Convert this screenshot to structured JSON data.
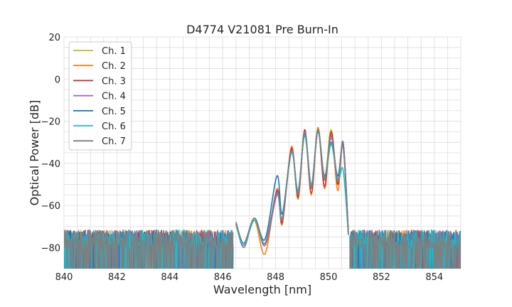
{
  "chart_data": {
    "type": "line",
    "title": "D4774 V21081 Pre Burn-In",
    "xlabel": "Wavelength [nm]",
    "ylabel": "Optical Power [dB]",
    "xlim": [
      840,
      855
    ],
    "ylim": [
      -90,
      20
    ],
    "x_ticks": [
      840,
      842,
      844,
      846,
      848,
      850,
      852,
      854
    ],
    "y_ticks": [
      20,
      0,
      -20,
      -40,
      -60,
      -80
    ],
    "x_tick_labels": [
      "840",
      "842",
      "844",
      "846",
      "848",
      "850",
      "852",
      "854"
    ],
    "y_tick_labels": [
      "20",
      "0",
      "−20",
      "−40",
      "−60",
      "−80"
    ],
    "grid": true,
    "legend_position": "top-left",
    "noise_floor_db": -76,
    "series": [
      {
        "name": "Ch. 1",
        "color": "#bcbd22",
        "points": [
          [
            846.5,
            -69
          ],
          [
            846.8,
            -78
          ],
          [
            847.2,
            -66
          ],
          [
            847.6,
            -79
          ],
          [
            848.05,
            -54
          ],
          [
            848.25,
            -67
          ],
          [
            848.6,
            -33
          ],
          [
            848.85,
            -55
          ],
          [
            849.1,
            -25
          ],
          [
            849.35,
            -52
          ],
          [
            849.6,
            -23
          ],
          [
            849.85,
            -47
          ],
          [
            850.1,
            -24
          ],
          [
            850.35,
            -50
          ],
          [
            850.55,
            -30
          ],
          [
            850.75,
            -73
          ]
        ]
      },
      {
        "name": "Ch. 2",
        "color": "#ff7f0e",
        "points": [
          [
            846.5,
            -69
          ],
          [
            846.8,
            -78
          ],
          [
            847.2,
            -67
          ],
          [
            847.6,
            -83
          ],
          [
            848.05,
            -52
          ],
          [
            848.25,
            -69
          ],
          [
            848.6,
            -32
          ],
          [
            848.85,
            -57
          ],
          [
            849.1,
            -25
          ],
          [
            849.35,
            -55
          ],
          [
            849.6,
            -23
          ],
          [
            849.85,
            -52
          ],
          [
            850.1,
            -26
          ],
          [
            850.35,
            -53
          ],
          [
            850.55,
            -30
          ],
          [
            850.75,
            -73
          ]
        ]
      },
      {
        "name": "Ch. 3",
        "color": "#d62728",
        "points": [
          [
            846.5,
            -69
          ],
          [
            846.8,
            -79
          ],
          [
            847.2,
            -66
          ],
          [
            847.6,
            -78
          ],
          [
            848.05,
            -53
          ],
          [
            848.25,
            -68
          ],
          [
            848.6,
            -33
          ],
          [
            848.85,
            -56
          ],
          [
            849.1,
            -24
          ],
          [
            849.35,
            -54
          ],
          [
            849.6,
            -24
          ],
          [
            849.85,
            -51
          ],
          [
            850.1,
            -25
          ],
          [
            850.35,
            -50
          ],
          [
            850.55,
            -30
          ],
          [
            850.75,
            -73
          ]
        ]
      },
      {
        "name": "Ch. 4",
        "color": "#9467bd",
        "points": [
          [
            846.5,
            -68
          ],
          [
            846.8,
            -80
          ],
          [
            847.2,
            -66
          ],
          [
            847.6,
            -79
          ],
          [
            848.05,
            -55
          ],
          [
            848.25,
            -66
          ],
          [
            848.6,
            -34
          ],
          [
            848.85,
            -54
          ],
          [
            849.1,
            -26
          ],
          [
            849.35,
            -51
          ],
          [
            849.6,
            -24
          ],
          [
            849.85,
            -48
          ],
          [
            850.1,
            -28
          ],
          [
            850.35,
            -48
          ],
          [
            850.55,
            -30
          ],
          [
            850.75,
            -74
          ]
        ]
      },
      {
        "name": "Ch. 5",
        "color": "#1f77b4",
        "points": [
          [
            846.5,
            -68
          ],
          [
            846.8,
            -78
          ],
          [
            847.2,
            -66
          ],
          [
            847.6,
            -76
          ],
          [
            848.05,
            -46
          ],
          [
            848.25,
            -64
          ],
          [
            848.6,
            -34
          ],
          [
            848.85,
            -53
          ],
          [
            849.1,
            -25
          ],
          [
            849.35,
            -50
          ],
          [
            849.6,
            -25
          ],
          [
            849.85,
            -46
          ],
          [
            850.1,
            -30
          ],
          [
            850.35,
            -46
          ],
          [
            850.55,
            -32
          ],
          [
            850.75,
            -74
          ]
        ]
      },
      {
        "name": "Ch. 6",
        "color": "#17becf",
        "points": [
          [
            846.5,
            -69
          ],
          [
            846.8,
            -79
          ],
          [
            847.2,
            -67
          ],
          [
            847.6,
            -78
          ],
          [
            848.05,
            -54
          ],
          [
            848.25,
            -66
          ],
          [
            848.6,
            -35
          ],
          [
            848.85,
            -53
          ],
          [
            849.1,
            -27
          ],
          [
            849.35,
            -50
          ],
          [
            849.6,
            -24
          ],
          [
            849.85,
            -47
          ],
          [
            850.1,
            -31
          ],
          [
            850.35,
            -48
          ],
          [
            850.55,
            -43
          ],
          [
            850.75,
            -74
          ]
        ]
      },
      {
        "name": "Ch. 7",
        "color": "#7f7f7f",
        "points": [
          [
            846.5,
            -68
          ],
          [
            846.8,
            -78
          ],
          [
            847.2,
            -66
          ],
          [
            847.6,
            -78
          ],
          [
            848.05,
            -54
          ],
          [
            848.25,
            -67
          ],
          [
            848.6,
            -34
          ],
          [
            848.85,
            -55
          ],
          [
            849.1,
            -25
          ],
          [
            849.35,
            -52
          ],
          [
            849.6,
            -24
          ],
          [
            849.85,
            -48
          ],
          [
            850.1,
            -27
          ],
          [
            850.35,
            -49
          ],
          [
            850.55,
            -31
          ],
          [
            850.75,
            -74
          ]
        ]
      }
    ]
  }
}
